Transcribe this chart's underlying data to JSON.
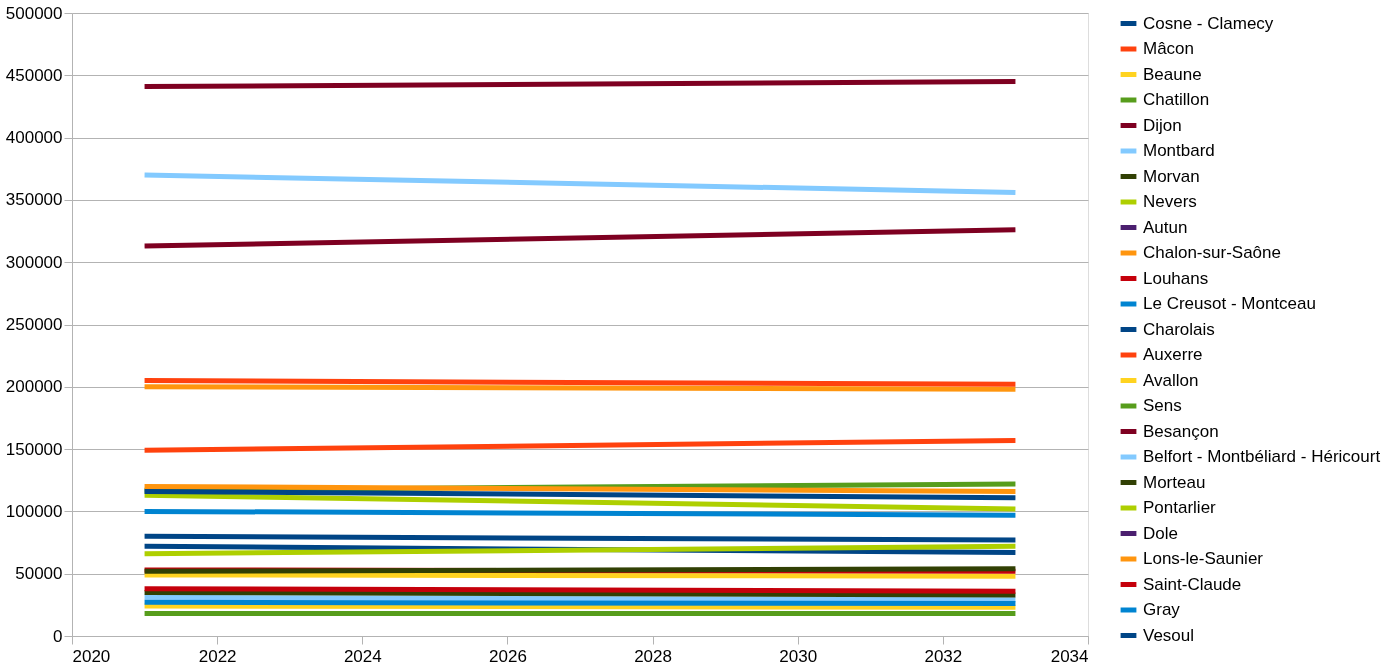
{
  "chart_data": {
    "type": "line",
    "x": [
      2021,
      2033
    ],
    "xlim": [
      2020,
      2034
    ],
    "xticks": [
      2020,
      2022,
      2024,
      2026,
      2028,
      2030,
      2032,
      2034
    ],
    "ylim": [
      0,
      500000
    ],
    "yticks": [
      0,
      50000,
      100000,
      150000,
      200000,
      250000,
      300000,
      350000,
      400000,
      450000,
      500000
    ],
    "grid": "y",
    "legend": "right",
    "marker": "none",
    "line_style": "solid",
    "series": [
      {
        "name": "Cosne - Clamecy",
        "color": "#004586",
        "values": [
          72000,
          67000
        ]
      },
      {
        "name": "Mâcon",
        "color": "#ff420e",
        "values": [
          149000,
          157000
        ]
      },
      {
        "name": "Beaune",
        "color": "#ffd320",
        "values": [
          49000,
          48000
        ]
      },
      {
        "name": "Chatillon",
        "color": "#579d1c",
        "values": [
          18000,
          18000
        ]
      },
      {
        "name": "Dijon",
        "color": "#7e0021",
        "values": [
          441000,
          445000
        ]
      },
      {
        "name": "Montbard",
        "color": "#83caff",
        "values": [
          31000,
          29000
        ]
      },
      {
        "name": "Morvan",
        "color": "#314004",
        "values": [
          35000,
          33000
        ]
      },
      {
        "name": "Nevers",
        "color": "#aecf00",
        "values": [
          113000,
          102000
        ]
      },
      {
        "name": "Autun",
        "color": "#4b1f6f",
        "values": [
          null,
          null
        ]
      },
      {
        "name": "Chalon-sur-Saône",
        "color": "#ff950e",
        "values": [
          200000,
          198000
        ]
      },
      {
        "name": "Louhans",
        "color": "#c5000b",
        "values": [
          53000,
          52000
        ]
      },
      {
        "name": "Le Creusot - Montceau",
        "color": "#0084d1",
        "values": [
          100000,
          97000
        ]
      },
      {
        "name": "Charolais",
        "color": "#004586",
        "values": [
          80000,
          77000
        ]
      },
      {
        "name": "Auxerre",
        "color": "#ff420e",
        "values": [
          205000,
          202000
        ]
      },
      {
        "name": "Avallon",
        "color": "#ffd320",
        "values": [
          24000,
          23000
        ]
      },
      {
        "name": "Sens",
        "color": "#579d1c",
        "values": [
          117000,
          122000
        ]
      },
      {
        "name": "Besançon",
        "color": "#7e0021",
        "values": [
          313000,
          326000
        ]
      },
      {
        "name": "Belfort - Montbéliard - Héricourt",
        "color": "#83caff",
        "values": [
          370000,
          356000
        ]
      },
      {
        "name": "Morteau",
        "color": "#314004",
        "values": [
          52000,
          54000
        ]
      },
      {
        "name": "Pontarlier",
        "color": "#aecf00",
        "values": [
          66000,
          72000
        ]
      },
      {
        "name": "Dole",
        "color": "#4b1f6f",
        "values": [
          null,
          null
        ]
      },
      {
        "name": "Lons-le-Saunier",
        "color": "#ff950e",
        "values": [
          120000,
          116000
        ]
      },
      {
        "name": "Saint-Claude",
        "color": "#c5000b",
        "values": [
          38000,
          36000
        ]
      },
      {
        "name": "Gray",
        "color": "#0084d1",
        "values": [
          27000,
          26000
        ]
      },
      {
        "name": "Vesoul",
        "color": "#004586",
        "values": [
          116000,
          111000
        ]
      }
    ]
  }
}
